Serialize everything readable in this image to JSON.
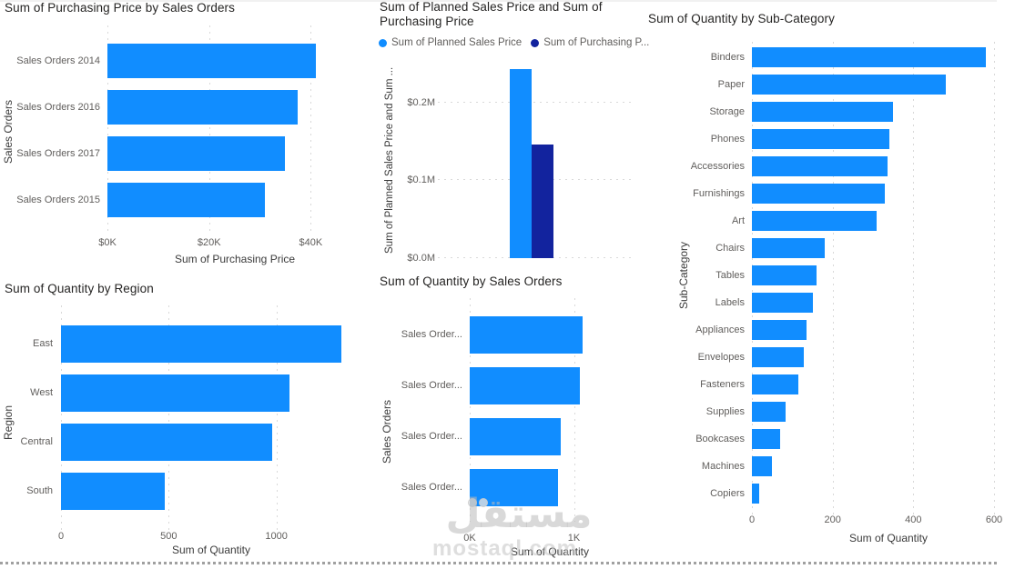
{
  "watermark": {
    "arabic": "مستقل",
    "latin": "mostaql.com"
  },
  "colors": {
    "bar_primary": "#118DFF",
    "bar_secondary": "#12239E",
    "title_text": "#252423",
    "label_text": "#605E5C",
    "gridline": "#D9D9D9",
    "page_border": "#A0A0A0"
  },
  "chart_data": [
    {
      "id": "chart1",
      "type": "bar",
      "orientation": "horizontal",
      "title": "Sum of Purchasing Price by Sales Orders",
      "xlabel": "Sum of Purchasing Price",
      "ylabel": "Sales Orders",
      "categories": [
        "Sales Orders 2014",
        "Sales Orders 2016",
        "Sales Orders 2017",
        "Sales Orders 2015"
      ],
      "values": [
        41000,
        37500,
        35000,
        31000
      ],
      "axis_max": 41000,
      "xlim": [
        0,
        41000
      ],
      "grid": true,
      "ticks": [
        {
          "label": "$0K",
          "value": 0
        },
        {
          "label": "$20K",
          "value": 20000
        },
        {
          "label": "$40K",
          "value": 40000
        }
      ],
      "bar_color": "#118DFF"
    },
    {
      "id": "chart2",
      "type": "bar",
      "orientation": "vertical",
      "title": "Sum of Planned Sales Price and Sum of Purchasing Price",
      "ylabel": "Sum of Planned Sales Price and Sum ...",
      "legend_position": "top",
      "legend": [
        {
          "label": "Sum of Planned Sales Price",
          "color": "#118DFF"
        },
        {
          "label": "Sum of Purchasing P...",
          "color": "#12239E"
        }
      ],
      "series": [
        {
          "name": "Sum of Planned Sales Price",
          "value": 243000,
          "color": "#118DFF"
        },
        {
          "name": "Sum of Purchasing Price",
          "value": 146000,
          "color": "#12239E"
        }
      ],
      "axis_max": 250000,
      "ylim": [
        0,
        250000
      ],
      "grid": true,
      "ticks": [
        {
          "label": "$0.0M",
          "value": 0
        },
        {
          "label": "$0.1M",
          "value": 100000
        },
        {
          "label": "$0.2M",
          "value": 200000
        }
      ]
    },
    {
      "id": "chart3",
      "type": "bar",
      "orientation": "horizontal",
      "title": "Sum of Quantity by Sub-Category",
      "xlabel": "Sum of Quantity",
      "ylabel": "Sub-Category",
      "categories": [
        "Binders",
        "Paper",
        "Storage",
        "Phones",
        "Accessories",
        "Furnishings",
        "Art",
        "Chairs",
        "Tables",
        "Labels",
        "Appliances",
        "Envelopes",
        "Fasteners",
        "Supplies",
        "Bookcases",
        "Machines",
        "Copiers"
      ],
      "values": [
        580,
        480,
        350,
        340,
        337,
        330,
        310,
        181,
        160,
        150,
        136,
        128,
        115,
        83,
        71,
        49,
        18
      ],
      "axis_max": 600,
      "xlim": [
        0,
        600
      ],
      "grid": true,
      "ticks": [
        {
          "label": "0",
          "value": 0
        },
        {
          "label": "200",
          "value": 200
        },
        {
          "label": "400",
          "value": 400
        },
        {
          "label": "600",
          "value": 600
        }
      ],
      "bar_color": "#118DFF"
    },
    {
      "id": "chart4",
      "type": "bar",
      "orientation": "horizontal",
      "title": "Sum of Quantity by Region",
      "xlabel": "Sum of Quantity",
      "ylabel": "Region",
      "categories": [
        "East",
        "West",
        "Central",
        "South"
      ],
      "values": [
        1300,
        1060,
        980,
        480
      ],
      "axis_max": 1310,
      "xlim": [
        0,
        1310
      ],
      "grid": true,
      "ticks": [
        {
          "label": "0",
          "value": 0
        },
        {
          "label": "500",
          "value": 500
        },
        {
          "label": "1000",
          "value": 1000
        }
      ],
      "bar_color": "#118DFF"
    },
    {
      "id": "chart5",
      "type": "bar",
      "orientation": "horizontal",
      "title": "Sum of Quantity by Sales Orders",
      "xlabel": "Sum of Quantity",
      "ylabel": "Sales Orders",
      "categories": [
        "Sales Order...",
        "Sales Order...",
        "Sales Order...",
        "Sales Order..."
      ],
      "values": [
        1080,
        1060,
        870,
        850
      ],
      "axis_max": 1100,
      "xlim": [
        0,
        1100
      ],
      "grid": true,
      "ticks": [
        {
          "label": "0K",
          "value": 0
        },
        {
          "label": "1K",
          "value": 1000
        }
      ],
      "bar_color": "#118DFF"
    }
  ]
}
